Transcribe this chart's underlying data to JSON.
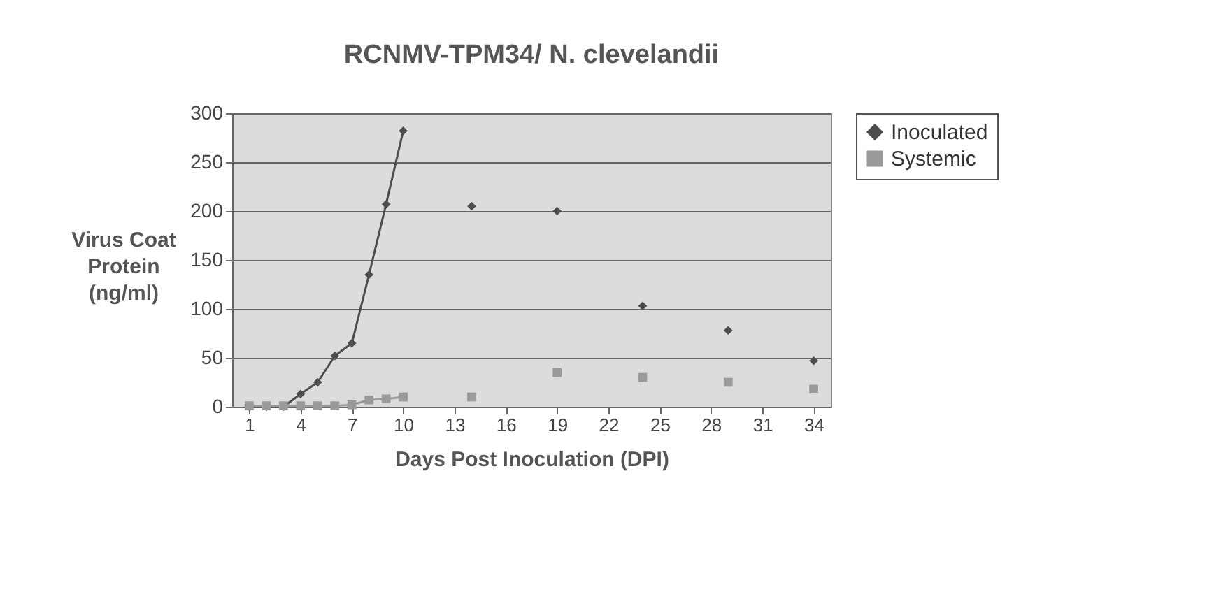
{
  "chart_data": {
    "type": "line",
    "title": "RCNMV-TPM34/ N. clevelandii",
    "xlabel": "Days Post Inoculation (DPI)",
    "ylabel": "Virus Coat\nProtein\n(ng/ml)",
    "x": [
      1,
      2,
      3,
      4,
      5,
      6,
      7,
      8,
      9,
      10,
      11,
      12,
      13,
      14,
      15,
      16,
      17,
      18,
      19,
      20,
      21,
      22,
      23,
      24,
      25,
      26,
      27,
      28,
      29,
      30,
      31,
      32,
      33,
      34
    ],
    "series": [
      {
        "name": "Inoculated",
        "color": "#4d4d4d",
        "marker": "diamond",
        "values": [
          0,
          0,
          0,
          13,
          25,
          52,
          65,
          135,
          207,
          282,
          null,
          null,
          null,
          205,
          null,
          null,
          null,
          null,
          200,
          null,
          null,
          null,
          null,
          103,
          null,
          null,
          null,
          null,
          78,
          null,
          null,
          null,
          null,
          47
        ]
      },
      {
        "name": "Systemic",
        "color": "#9a9a9a",
        "marker": "square",
        "values": [
          1,
          1,
          1,
          1,
          1,
          1,
          2,
          7,
          8,
          10,
          null,
          null,
          null,
          10,
          null,
          null,
          null,
          null,
          35,
          null,
          null,
          null,
          null,
          30,
          null,
          null,
          null,
          null,
          25,
          null,
          null,
          null,
          null,
          18
        ]
      }
    ],
    "xlim": [
      0,
      35
    ],
    "xticks": [
      1,
      4,
      7,
      10,
      13,
      16,
      19,
      22,
      25,
      28,
      31,
      34
    ],
    "ylim": [
      0,
      300
    ],
    "yticks": [
      0,
      50,
      100,
      150,
      200,
      250,
      300
    ],
    "grid": "y",
    "legend": "right",
    "line_style": "solid"
  }
}
